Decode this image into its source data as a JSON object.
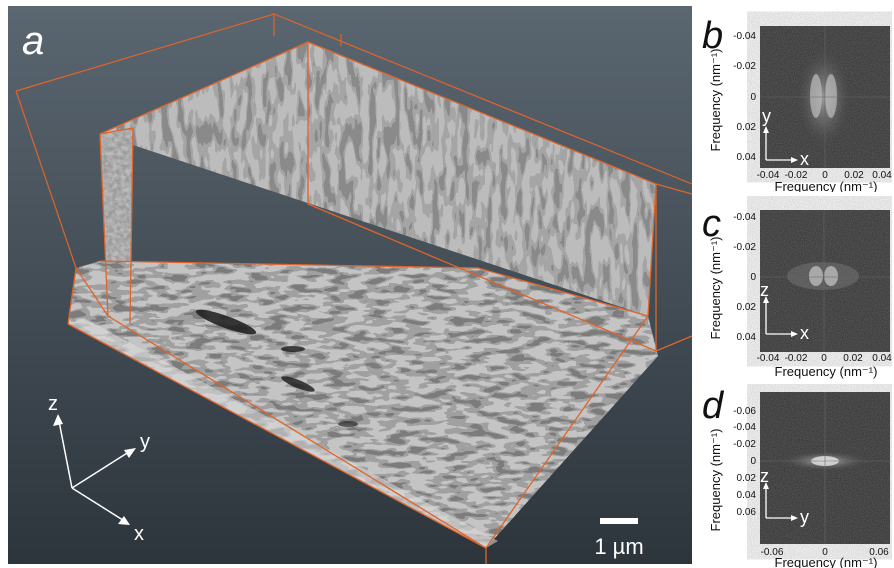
{
  "main_panel": {
    "letter": "a",
    "axes": {
      "z": "z",
      "y": "y",
      "x": "x"
    },
    "scale_bar": "1 µm",
    "colors": {
      "bg_top": "#5a6670",
      "bg_bottom": "#2d353c",
      "box": "#e0642a",
      "label": "#ffffff"
    }
  },
  "panels": [
    {
      "letter": "b",
      "ylabel": "Frequency (nm⁻¹)",
      "xlabel": "Frequency (nm⁻¹)",
      "y_ticks": [
        "-0.04",
        "-0.02",
        "0",
        "0.02",
        "0.04"
      ],
      "x_ticks": [
        "-0.04",
        "-0.02",
        "0",
        "0.02",
        "0.04"
      ],
      "axis_v": "y",
      "axis_h": "x"
    },
    {
      "letter": "c",
      "ylabel": "Frequency (nm⁻¹)",
      "xlabel": "Frequency (nm⁻¹)",
      "y_ticks": [
        "-0.04",
        "-0.02",
        "0",
        "0.02",
        "0.04"
      ],
      "x_ticks": [
        "-0.04",
        "-0.02",
        "0",
        "0.02",
        "0.04"
      ],
      "axis_v": "z",
      "axis_h": "x"
    },
    {
      "letter": "d",
      "ylabel": "Frequency (nm⁻¹)",
      "xlabel": "Frequency (nm⁻¹)",
      "y_ticks": [
        "-0.06",
        "-0.04",
        "-0.02",
        "0",
        "0.02",
        "0.04",
        "0.06"
      ],
      "x_ticks": [
        "-0.06",
        "0",
        "0.06"
      ],
      "axis_v": "z",
      "axis_h": "y"
    }
  ]
}
